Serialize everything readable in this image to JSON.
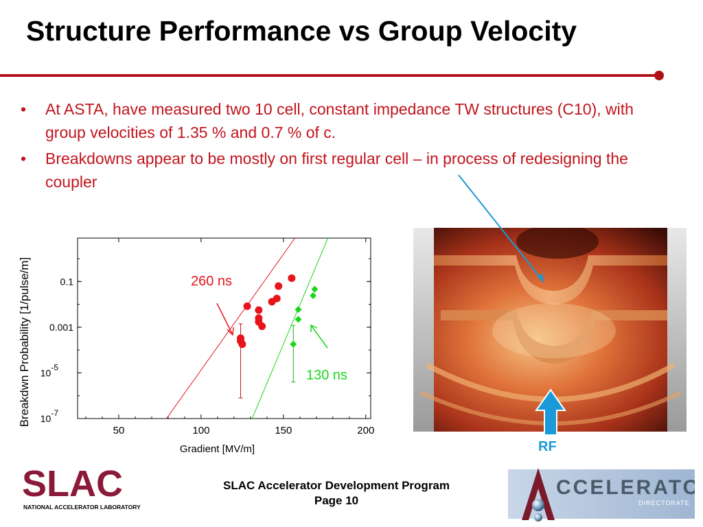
{
  "slide": {
    "title": "Structure Performance vs Group Velocity",
    "bullets": [
      "At ASTA, have measured two 10 cell, constant impedance TW structures (C10), with group velocities of 1.35 % and 0.7 % of c.",
      "Breakdowns appear to be mostly on first regular cell – in process of redesigning the coupler"
    ],
    "bullet_char": "•",
    "photo_label": "RF",
    "footer_line1": "SLAC Accelerator Development Program",
    "footer_line2": "Page 10",
    "slac_logo_text": "SLAC",
    "slac_logo_sub": "NATIONAL ACCELERATOR LABORATORY",
    "acc_logo_text": "CCELERATOR",
    "acc_logo_sub": "DIRECTORATE"
  },
  "colors": {
    "title_rule": "#b01018",
    "bullet_text": "#c0141c",
    "series_260": "#e8141c",
    "series_130": "#1ad61a",
    "rf_arrow": "#1a9ad8"
  },
  "chart_data": {
    "type": "scatter",
    "xlabel": "Gradient   [MV/m]",
    "ylabel": "Breakdwn Probability [1/pulse/m]",
    "xlim": [
      25,
      203
    ],
    "ylim_log10": [
      -7,
      0.9
    ],
    "yscale": "log",
    "x_ticks": [
      50,
      100,
      150,
      200
    ],
    "y_ticks": [
      {
        "value_log10": -1,
        "base": "0.1",
        "exp": ""
      },
      {
        "value_log10": -3,
        "base": "0.001",
        "exp": ""
      },
      {
        "value_log10": -5,
        "base": "10",
        "exp": "-5"
      },
      {
        "value_log10": -7,
        "base": "10",
        "exp": "-7"
      }
    ],
    "series": [
      {
        "name": "260 ns",
        "marker": "circle",
        "color": "#e8141c",
        "points": [
          {
            "x": 124,
            "y": 0.00033,
            "err_lo": 8e-07,
            "err_hi": 0.0014
          },
          {
            "x": 124,
            "y": 0.00025
          },
          {
            "x": 125,
            "y": 0.00018
          },
          {
            "x": 128,
            "y": 0.0083
          },
          {
            "x": 135,
            "y": 0.0056
          },
          {
            "x": 135,
            "y": 0.0025
          },
          {
            "x": 135,
            "y": 0.0017
          },
          {
            "x": 137,
            "y": 0.0011
          },
          {
            "x": 143,
            "y": 0.013
          },
          {
            "x": 146,
            "y": 0.018
          },
          {
            "x": 147,
            "y": 0.063
          },
          {
            "x": 155,
            "y": 0.14
          }
        ],
        "fit_line": [
          [
            79,
            1e-07
          ],
          [
            157,
            8
          ]
        ]
      },
      {
        "name": "130 ns",
        "marker": "diamond",
        "color": "#1ad61a",
        "points": [
          {
            "x": 156,
            "y": 0.00018,
            "err_lo": 4e-06,
            "err_hi": 0.0012
          },
          {
            "x": 159,
            "y": 0.0022
          },
          {
            "x": 159,
            "y": 0.0059
          },
          {
            "x": 168,
            "y": 0.024
          },
          {
            "x": 169,
            "y": 0.046
          }
        ],
        "fit_line": [
          [
            131,
            1e-07
          ],
          [
            177,
            8
          ]
        ]
      }
    ],
    "annotations": [
      {
        "text": "260 ns",
        "color": "#e8141c"
      },
      {
        "text": "130 ns",
        "color": "#1ad61a"
      }
    ],
    "grid": false,
    "legend": "none"
  }
}
